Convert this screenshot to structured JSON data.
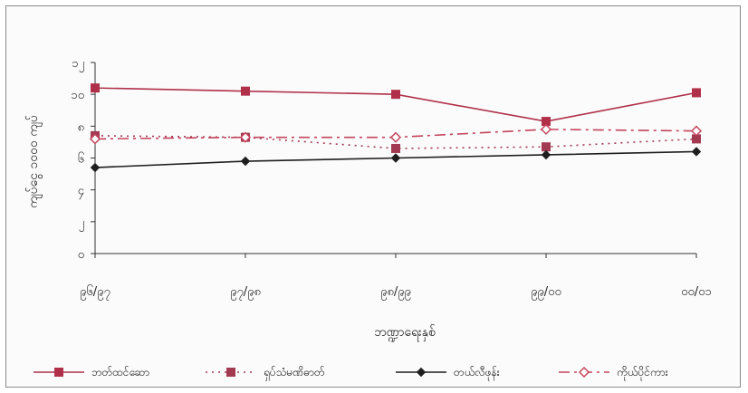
{
  "chart_data": {
    "type": "line",
    "categories": [
      "၉၆/၉၇",
      "၉၇/၉၈",
      "၉၈/၉၉",
      "၉၉/၀၀",
      "၀၀/၀၁"
    ],
    "ylim": [
      0,
      12
    ],
    "yticks": [
      "၀",
      "၂",
      "၄",
      "၆",
      "၈",
      "၁၀",
      "၁၂"
    ],
    "xlabel": "ဘဏ္ဍာရေးနှစ်",
    "ylabel": "ကျပ်ငွေ ၁၀၀၀ ကျပ်",
    "grid": false,
    "legend_position": "bottom",
    "series": [
      {
        "name": "ဘတ်ထင်ဆော",
        "values": [
          10.4,
          10.2,
          10.0,
          8.3,
          10.1
        ],
        "color": "#b0304a",
        "style": "solid",
        "marker": "square"
      },
      {
        "name": "ရှပ်သံမဏိဓာတ်",
        "values": [
          7.4,
          7.3,
          6.6,
          6.7,
          7.2
        ],
        "color": "#a23a52",
        "style": "dotted",
        "marker": "square"
      },
      {
        "name": "တယ်လီဖုန်း",
        "values": [
          5.4,
          5.8,
          6.0,
          6.2,
          6.4
        ],
        "color": "#1e1e1e",
        "style": "solid",
        "marker": "diamond"
      },
      {
        "name": "ကိုယ်ပိုင်ကား",
        "values": [
          7.2,
          7.3,
          7.3,
          7.8,
          7.7
        ],
        "color": "#c4445c",
        "style": "dashdot",
        "marker": "diamond-open"
      }
    ]
  }
}
